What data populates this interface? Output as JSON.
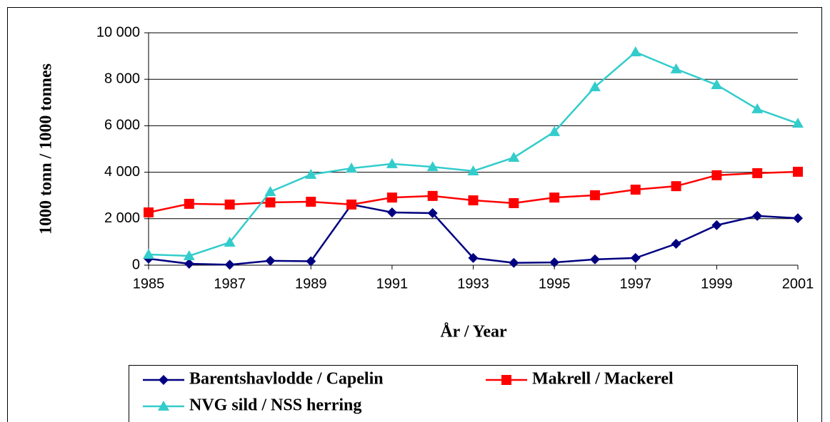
{
  "chart_data": {
    "type": "line",
    "xlabel": "År / Year",
    "ylabel": "1000 tonn / 1000 tonnes",
    "x": [
      1985,
      1986,
      1987,
      1988,
      1989,
      1990,
      1991,
      1992,
      1993,
      1994,
      1995,
      1996,
      1997,
      1998,
      1999,
      2000,
      2001
    ],
    "series": [
      {
        "name": "Barentshavlodde / Capelin",
        "color": "#000080",
        "marker": "diamond",
        "values": [
          280,
          60,
          20,
          190,
          170,
          2610,
          2270,
          2240,
          310,
          100,
          120,
          250,
          310,
          920,
          1720,
          2120,
          2020
        ]
      },
      {
        "name": "Makrell / Mackerel",
        "color": "#ff0000",
        "marker": "square",
        "values": [
          2270,
          2640,
          2610,
          2700,
          2730,
          2610,
          2910,
          2980,
          2790,
          2670,
          2910,
          3010,
          3250,
          3400,
          3870,
          3960,
          4020
        ]
      },
      {
        "name": "NVG sild / NSS herring",
        "color": "#33cccc",
        "marker": "triangle",
        "values": [
          460,
          400,
          980,
          3160,
          3900,
          4170,
          4360,
          4230,
          4050,
          4630,
          5740,
          7670,
          9170,
          8440,
          7760,
          6720,
          6100
        ]
      }
    ],
    "xlim": [
      1985,
      2001
    ],
    "xticks": [
      1985,
      1987,
      1989,
      1991,
      1993,
      1995,
      1997,
      1999,
      2001
    ],
    "ylim": [
      0,
      10000
    ],
    "yticks": [
      0,
      {
        "value": 2000,
        "label": "2 000"
      },
      {
        "value": 4000,
        "label": "4 000"
      },
      {
        "value": 6000,
        "label": "6 000"
      },
      {
        "value": 8000,
        "label": "8 000"
      },
      {
        "value": 10000,
        "label": "10 000"
      }
    ],
    "grid": true,
    "legend": "bottom"
  }
}
